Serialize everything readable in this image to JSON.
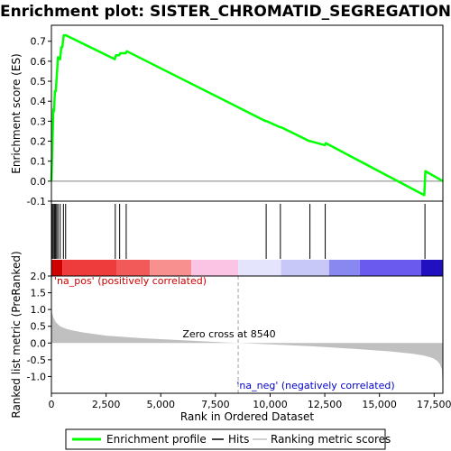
{
  "chart_data": {
    "type": "line",
    "title": "Enrichment plot: SISTER_CHROMATID_SEGREGATION",
    "top_panel": {
      "ylabel": "Enrichment score (ES)",
      "ylim": [
        -0.1,
        0.78
      ],
      "yticks": [
        -0.1,
        0.0,
        0.1,
        0.2,
        0.3,
        0.4,
        0.5,
        0.6,
        0.7
      ],
      "ytick_labels": [
        "-0.1",
        "0.0",
        "0.1",
        "0.2",
        "0.3",
        "0.4",
        "0.5",
        "0.6",
        "0.7"
      ],
      "line_color": "#00ff00",
      "series": [
        {
          "name": "Enrichment profile",
          "x": [
            0,
            30,
            60,
            90,
            120,
            160,
            200,
            260,
            300,
            350,
            400,
            450,
            500,
            560,
            620,
            660,
            2900,
            2950,
            3100,
            3150,
            3400,
            3450,
            9800,
            9850,
            10450,
            10500,
            11800,
            11850,
            12500,
            12550,
            17050,
            17100,
            17900
          ],
          "y": [
            0.0,
            0.12,
            0.24,
            0.36,
            0.35,
            0.45,
            0.45,
            0.55,
            0.62,
            0.61,
            0.61,
            0.67,
            0.67,
            0.73,
            0.73,
            0.73,
            0.61,
            0.63,
            0.63,
            0.64,
            0.64,
            0.65,
            0.3,
            0.3,
            0.27,
            0.27,
            0.2,
            0.2,
            0.18,
            0.19,
            -0.07,
            0.05,
            0.0
          ]
        }
      ]
    },
    "hits_panel": {
      "hit_positions": [
        40,
        90,
        140,
        190,
        240,
        300,
        400,
        550,
        650,
        2920,
        3120,
        3420,
        9820,
        10470,
        11820,
        12520,
        17080
      ],
      "color_bands": [
        {
          "from": 0,
          "to": 500,
          "color": "#d00000"
        },
        {
          "from": 500,
          "to": 3000,
          "color": "#ee3b3b"
        },
        {
          "from": 3000,
          "to": 4500,
          "color": "#f25a5a"
        },
        {
          "from": 4500,
          "to": 6400,
          "color": "#f89090"
        },
        {
          "from": 6400,
          "to": 8540,
          "color": "#fcc4e4"
        },
        {
          "from": 8540,
          "to": 10500,
          "color": "#e4e4fc"
        },
        {
          "from": 10500,
          "to": 12700,
          "color": "#c8c8f8"
        },
        {
          "from": 12700,
          "to": 14100,
          "color": "#8888f0"
        },
        {
          "from": 14100,
          "to": 16900,
          "color": "#6a5aee"
        },
        {
          "from": 16900,
          "to": 17900,
          "color": "#2010c0"
        }
      ]
    },
    "bottom_panel": {
      "ylabel": "Ranked list metric (PreRanked)",
      "xlabel": "Rank in Ordered Dataset",
      "ylim": [
        -1.5,
        2.0
      ],
      "yticks": [
        -1.0,
        -0.5,
        0.0,
        0.5,
        1.0,
        1.5,
        2.0
      ],
      "ytick_labels": [
        "-1.0",
        "-0.5",
        "0.0",
        "0.5",
        "1.0",
        "1.5",
        "2.0"
      ],
      "xlim": [
        0,
        17900
      ],
      "xticks": [
        0,
        2500,
        5000,
        7500,
        10000,
        12500,
        15000,
        17500
      ],
      "xtick_labels": [
        "0",
        "2,500",
        "5,000",
        "7,500",
        "10,000",
        "12,500",
        "15,000",
        "17,500"
      ],
      "fill_color": "#c0c0c0",
      "metric_curve": {
        "x": [
          0,
          30,
          100,
          200,
          400,
          700,
          1000,
          1500,
          2500,
          4000,
          6000,
          8540,
          10000,
          12000,
          14000,
          15500,
          16500,
          17000,
          17300,
          17500,
          17650,
          17750,
          17850,
          17900
        ],
        "y": [
          1.0,
          0.9,
          0.75,
          0.62,
          0.5,
          0.42,
          0.37,
          0.31,
          0.22,
          0.15,
          0.08,
          0.0,
          -0.04,
          -0.1,
          -0.18,
          -0.25,
          -0.32,
          -0.37,
          -0.42,
          -0.47,
          -0.54,
          -0.62,
          -0.78,
          -1.35
        ]
      },
      "zero_cross_x": 8540,
      "annotations": [
        {
          "text": "'na_pos' (positively correlated)",
          "color": "#d00000"
        },
        {
          "text": "Zero cross at 8540",
          "color": "#000000"
        },
        {
          "text": "'na_neg' (negatively correlated)",
          "color": "#0000cc"
        }
      ]
    },
    "legend": {
      "placement": "bottom",
      "entries": [
        {
          "label": "Enrichment profile",
          "color": "#00ff00",
          "marker": "thick-line"
        },
        {
          "label": "Hits",
          "color": "#000000",
          "marker": "line"
        },
        {
          "label": "Ranking metric scores",
          "color": "#c0c0c0",
          "marker": "line"
        }
      ]
    }
  }
}
